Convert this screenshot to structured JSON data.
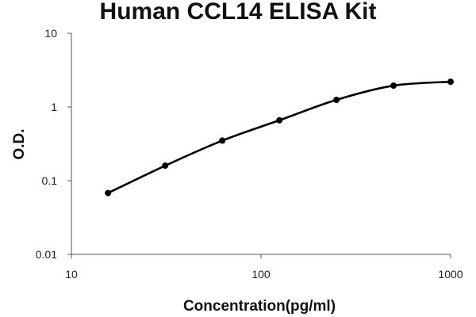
{
  "chart_data": {
    "type": "line",
    "title": "Human CCL14 ELISA Kit",
    "xlabel": "Concentration(pg/ml)",
    "ylabel": "O.D.",
    "xscale": "log",
    "yscale": "log",
    "xlim": [
      10,
      1000
    ],
    "ylim": [
      0.01,
      10
    ],
    "x_ticks": [
      "10",
      "100",
      "1000"
    ],
    "y_ticks": [
      "10",
      "1",
      "0.1",
      "0.01"
    ],
    "grid": false,
    "legend": "none",
    "series": [
      {
        "x": [
          15.6,
          31.25,
          62.5,
          125,
          250,
          500,
          1000
        ],
        "y": [
          0.068,
          0.16,
          0.35,
          0.66,
          1.25,
          1.95,
          2.2
        ]
      }
    ],
    "colors": {
      "curve": "#000000",
      "points": "#000000",
      "axis": "#555555"
    }
  }
}
